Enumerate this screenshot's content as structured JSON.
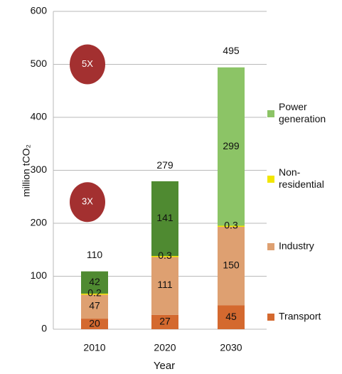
{
  "chart_data": {
    "type": "stacked_bar",
    "y_label": "million tCO₂",
    "x_label": "Year",
    "categories": [
      "2010",
      "2020",
      "2030"
    ],
    "series": [
      {
        "name": "Transport",
        "color": "#d4692f",
        "values": [
          20,
          27,
          45
        ]
      },
      {
        "name": "Industry",
        "color": "#dea071",
        "values": [
          47,
          111,
          150
        ]
      },
      {
        "name": "Non-residential",
        "color": "#f2e600",
        "values": [
          0.2,
          0.3,
          0.3
        ]
      },
      {
        "name": "Power generation",
        "color": "#8cc466",
        "bar_colors": [
          "#4f8a31",
          "#4f8a31",
          "#8cc466"
        ],
        "values": [
          42,
          141,
          299
        ]
      }
    ],
    "totals": [
      110,
      279,
      495
    ],
    "annotations": [
      "5X",
      "3X"
    ],
    "ylim": [
      0,
      600
    ],
    "yticks": [
      0,
      100,
      200,
      300,
      400,
      500,
      600
    ],
    "grid": true
  }
}
